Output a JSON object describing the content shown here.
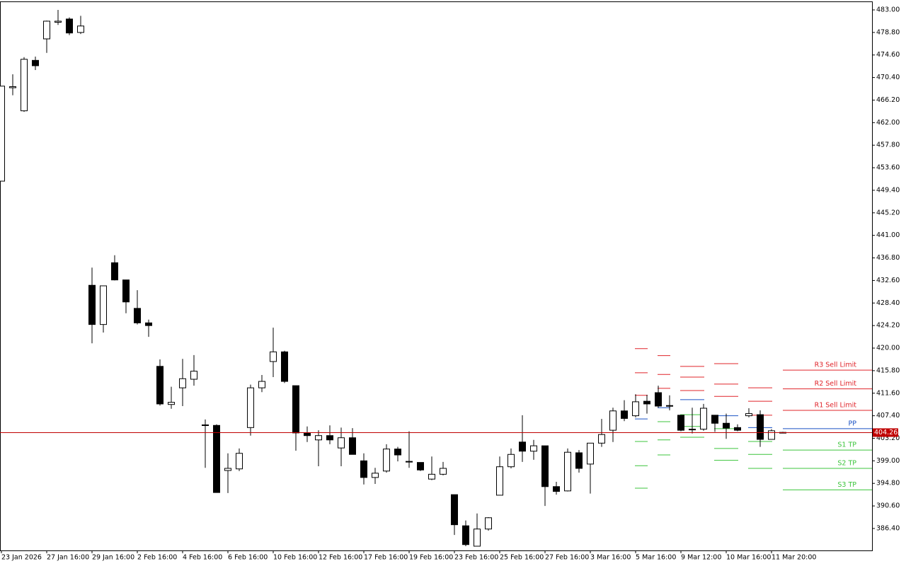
{
  "chart_data": {
    "type": "candlestick",
    "categories": [
      "23 Jan 2026",
      null,
      null,
      null,
      "27 Jan 16:00",
      null,
      null,
      null,
      "29 Jan 16:00",
      null,
      null,
      null,
      "2 Feb 16:00",
      null,
      null,
      null,
      "4 Feb 16:00",
      null,
      null,
      null,
      "6 Feb 16:00",
      null,
      null,
      null,
      "10 Feb 16:00",
      null,
      null,
      null,
      "12 Feb 16:00",
      null,
      null,
      null,
      "17 Feb 16:00",
      null,
      null,
      null,
      "19 Feb 16:00",
      null,
      null,
      null,
      "23 Feb 16:00",
      null,
      null,
      null,
      "25 Feb 16:00",
      null,
      null,
      null,
      "27 Feb 16:00",
      null,
      null,
      null,
      "3 Mar 16:00",
      null,
      null,
      null,
      "5 Mar 16:00",
      null,
      null,
      null,
      "9 Mar 12:00",
      null,
      null,
      null,
      "10 Mar 16:00",
      null,
      null,
      null,
      "11 Mar 20:00",
      null
    ],
    "open": [
      451.1,
      468.5,
      464.2,
      473.6,
      477.6,
      480.7,
      481.3,
      478.8,
      431.7,
      424.4,
      435.9,
      432.7,
      427.4,
      424.7,
      416.6,
      409.5,
      412.6,
      414.2,
      405.7,
      405.6,
      397.2,
      397.5,
      405.2,
      412.6,
      417.5,
      419.3,
      413.0,
      404.2,
      402.9,
      403.7,
      401.4,
      403.3,
      399.0,
      395.9,
      397.1,
      401.2,
      398.9,
      398.7,
      395.6,
      396.5,
      392.7,
      386.9,
      383.1,
      386.3,
      392.6,
      397.9,
      402.5,
      400.8,
      401.8,
      394.2,
      393.4,
      400.5,
      398.4,
      402.3,
      404.7,
      408.3,
      407.4,
      410.1,
      411.7,
      409.3,
      407.5,
      404.8,
      404.9,
      407.5,
      406.0,
      405.2,
      407.4,
      407.6,
      403.0,
      404.3
    ],
    "high": [
      468.8,
      471.0,
      474.2,
      474.3,
      481.0,
      483.0,
      481.6,
      481.9,
      435.0,
      431.6,
      437.3,
      432.7,
      430.8,
      425.3,
      417.9,
      412.8,
      418.0,
      418.7,
      406.7,
      405.8,
      400.4,
      401.3,
      413.2,
      415.0,
      423.8,
      419.5,
      413.0,
      405.4,
      404.7,
      405.6,
      405.2,
      405.1,
      400.4,
      397.7,
      402.1,
      401.6,
      404.5,
      398.7,
      399.8,
      398.8,
      392.7,
      387.9,
      389.2,
      388.5,
      399.8,
      401.3,
      407.5,
      402.9,
      401.8,
      395.1,
      401.3,
      401.0,
      402.3,
      406.8,
      408.9,
      410.3,
      411.4,
      411.3,
      413.0,
      411.2,
      407.5,
      408.9,
      409.6,
      407.5,
      407.8,
      405.8,
      408.8,
      408.4,
      404.9,
      404.4
    ],
    "low": [
      451.1,
      467.1,
      464.0,
      471.8,
      475.0,
      480.2,
      478.3,
      478.5,
      420.9,
      422.9,
      432.6,
      426.5,
      424.4,
      422.1,
      409.3,
      408.7,
      409.2,
      413.0,
      397.7,
      393.1,
      393.0,
      397.1,
      403.7,
      411.8,
      414.6,
      413.5,
      400.9,
      402.5,
      398.0,
      402.1,
      398.0,
      400.2,
      394.6,
      394.7,
      396.8,
      398.9,
      397.7,
      397.1,
      395.4,
      396.3,
      385.2,
      383.1,
      383.1,
      386.0,
      392.6,
      397.6,
      398.8,
      399.2,
      390.6,
      392.7,
      393.3,
      396.8,
      392.9,
      401.6,
      402.5,
      406.4,
      407.1,
      407.8,
      408.9,
      408.4,
      404.5,
      404.1,
      404.6,
      404.4,
      403.1,
      404.5,
      407.1,
      401.6,
      403.0,
      404.2
    ],
    "close": [
      468.8,
      468.7,
      473.8,
      472.6,
      480.9,
      480.9,
      478.7,
      480.0,
      424.4,
      431.6,
      432.7,
      428.6,
      424.7,
      424.2,
      409.6,
      409.9,
      414.3,
      415.7,
      405.6,
      393.1,
      397.6,
      400.4,
      412.6,
      413.8,
      419.3,
      413.8,
      404.2,
      403.7,
      403.7,
      402.9,
      403.3,
      400.2,
      395.9,
      396.7,
      401.2,
      400.1,
      398.8,
      397.3,
      396.5,
      397.6,
      387.1,
      383.4,
      386.3,
      388.4,
      397.9,
      400.2,
      400.8,
      401.8,
      394.2,
      393.3,
      400.6,
      397.6,
      402.3,
      403.9,
      408.3,
      406.9,
      410.0,
      409.6,
      409.2,
      409.2,
      404.7,
      404.9,
      408.8,
      406.0,
      405.1,
      404.7,
      407.8,
      403.0,
      404.6,
      404.26
    ],
    "up_color": "#ffffff",
    "down_color": "#000000",
    "ylim": [
      382.31,
      484.58
    ],
    "yticks": [
      {
        "value": 483,
        "label": "483.00"
      },
      {
        "value": 478.8,
        "label": "478.80"
      },
      {
        "value": 474.6,
        "label": "474.60"
      },
      {
        "value": 470.4,
        "label": "470.40"
      },
      {
        "value": 466.2,
        "label": "466.20"
      },
      {
        "value": 462,
        "label": "462.00"
      },
      {
        "value": 457.8,
        "label": "457.80"
      },
      {
        "value": 453.6,
        "label": "453.60"
      },
      {
        "value": 449.4,
        "label": "449.40"
      },
      {
        "value": 445.2,
        "label": "445.20"
      },
      {
        "value": 441,
        "label": "441.00"
      },
      {
        "value": 436.8,
        "label": "436.80"
      },
      {
        "value": 432.6,
        "label": "432.60"
      },
      {
        "value": 428.4,
        "label": "428.40"
      },
      {
        "value": 424.2,
        "label": "424.20"
      },
      {
        "value": 420,
        "label": "420.00"
      },
      {
        "value": 415.8,
        "label": "415.80"
      },
      {
        "value": 411.6,
        "label": "411.60"
      },
      {
        "value": 407.4,
        "label": "407.40"
      },
      {
        "value": 403.2,
        "label": "403.20"
      },
      {
        "value": 399,
        "label": "399.00"
      },
      {
        "value": 394.8,
        "label": "394.80"
      },
      {
        "value": 390.6,
        "label": "390.60"
      },
      {
        "value": 386.4,
        "label": "386.40"
      }
    ],
    "last_price": 404.26,
    "last_price_color": "#c00000",
    "level_colors": [
      "#e0242a",
      "#e0242a",
      "#e0242a",
      "#1a52c4",
      "#3cc43c",
      "#3cc43c",
      "#3cc43c"
    ],
    "pivot_history": [
      {
        "start": 56,
        "end": 57,
        "levels": [
          419.9,
          415.4,
          411.2,
          406.8,
          402.6,
          398.1,
          393.9
        ]
      },
      {
        "start": 58,
        "end": 59,
        "levels": [
          418.6,
          415.1,
          412.5,
          408.9,
          406.3,
          402.9,
          400.1
        ]
      },
      {
        "start": 60,
        "end": 62,
        "levels": [
          416.6,
          414.6,
          412.1,
          410.4,
          407.6,
          405.4,
          403.4
        ]
      },
      {
        "start": 63,
        "end": 65,
        "levels": [
          417.1,
          413.3,
          411.0,
          407.4,
          405.0,
          401.3,
          399.1
        ]
      },
      {
        "start": 66,
        "end": 68,
        "levels": [
          412.6,
          410.1,
          407.5,
          405.2,
          402.6,
          400.2,
          397.6
        ]
      }
    ],
    "levels_start": 69,
    "levels": [
      {
        "name": "R3 Sell Limit",
        "value": 415.9
      },
      {
        "name": "R2 Sell Limit",
        "value": 412.4
      },
      {
        "name": "R1 Sell Limit",
        "value": 408.4
      },
      {
        "name": "PP",
        "value": 405.0
      },
      {
        "name": "S1 TP",
        "value": 401.0
      },
      {
        "name": "S2 TP",
        "value": 397.6
      },
      {
        "name": "S3 TP",
        "value": 393.6
      }
    ]
  }
}
